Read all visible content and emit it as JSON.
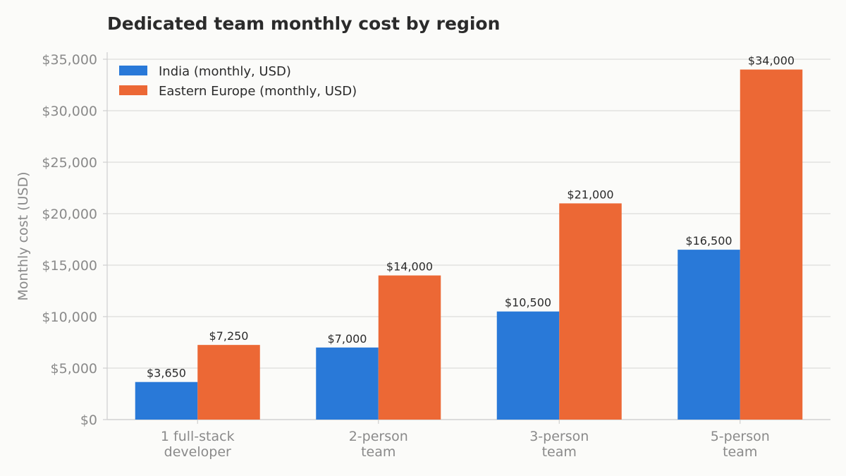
{
  "chart_data": {
    "type": "bar",
    "title": "Dedicated team monthly cost by region",
    "ylabel": "Monthly cost (USD)",
    "xlabel": "",
    "categories": [
      [
        "1 full-stack",
        "developer"
      ],
      [
        "2-person",
        "team"
      ],
      [
        "3-person",
        "team"
      ],
      [
        "5-person",
        "team"
      ]
    ],
    "series": [
      {
        "name": "India (monthly, USD)",
        "color": "#2979d8",
        "values": [
          3650,
          7000,
          10500,
          16500
        ],
        "labels": [
          "$3,650",
          "$7,000",
          "$10,500",
          "$16,500"
        ]
      },
      {
        "name": "Eastern Europe (monthly, USD)",
        "color": "#ec6835",
        "values": [
          7250,
          14000,
          21000,
          34000
        ],
        "labels": [
          "$7,250",
          "$14,000",
          "$21,000",
          "$34,000"
        ]
      }
    ],
    "ylim": [
      0,
      35000
    ],
    "yticks": [
      0,
      5000,
      10000,
      15000,
      20000,
      25000,
      30000,
      35000
    ],
    "ytick_labels": [
      "$0",
      "$5,000",
      "$10,000",
      "$15,000",
      "$20,000",
      "$25,000",
      "$30,000",
      "$35,000"
    ],
    "grid": true,
    "legend_position": "top-left"
  }
}
